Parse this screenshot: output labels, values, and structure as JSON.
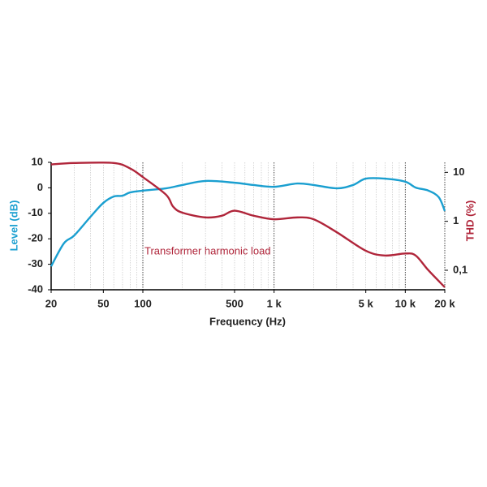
{
  "chart_data": {
    "type": "line",
    "xlabel": "Frequency (Hz)",
    "ylabel": "Level (dB)",
    "y2label": "THD (%)",
    "annotation": "Transformer harmonic load",
    "xscale": "log",
    "y2scale": "log",
    "xlim": [
      20,
      20000
    ],
    "ylim": [
      -40,
      10
    ],
    "y2lim": [
      0.04,
      16
    ],
    "xticks": [
      20,
      50,
      100,
      500,
      {
        "value": 1000,
        "label": "1 k"
      },
      {
        "value": 5000,
        "label": "5 k"
      },
      {
        "value": 10000,
        "label": "10 k"
      },
      {
        "value": 20000,
        "label": "20 k"
      }
    ],
    "x_major_grid": [
      100,
      1000,
      10000,
      20000
    ],
    "x_minor_grid": [
      30,
      40,
      50,
      60,
      70,
      80,
      90,
      200,
      300,
      400,
      500,
      600,
      700,
      800,
      900,
      2000,
      3000,
      4000,
      5000,
      6000,
      7000,
      8000,
      9000
    ],
    "yticks": [
      -40,
      -30,
      -20,
      -10,
      0,
      10
    ],
    "y2ticks": [
      10,
      1,
      {
        "value": 0.1,
        "label": "0,1"
      }
    ],
    "series": [
      {
        "name": "Level",
        "color": "#1a9fd0",
        "x": [
          20,
          25,
          30,
          40,
          50,
          60,
          70,
          80,
          100,
          150,
          200,
          300,
          500,
          700,
          1000,
          1500,
          2000,
          3000,
          4000,
          5000,
          7000,
          10000,
          12000,
          15000,
          18000,
          20000
        ],
        "values": [
          -30.8,
          -21.8,
          -18.7,
          -11.3,
          -5.9,
          -3.4,
          -3.1,
          -1.8,
          -1.1,
          -0.2,
          1.1,
          2.7,
          2.0,
          1.1,
          0.4,
          1.7,
          1.1,
          -0.2,
          1.1,
          3.6,
          3.6,
          2.4,
          0.1,
          -1.1,
          -3.7,
          -9.1
        ]
      },
      {
        "name": "THD",
        "color": "#b0253a",
        "axis": "y2",
        "x": [
          20,
          30,
          60,
          80,
          100,
          150,
          170,
          200,
          300,
          400,
          500,
          700,
          1000,
          1500,
          2000,
          3000,
          5000,
          7000,
          10000,
          12000,
          15000,
          20000
        ],
        "values": [
          14.5,
          15.5,
          15.5,
          12,
          8,
          3.5,
          2,
          1.5,
          1.2,
          1.3,
          1.65,
          1.3,
          1.1,
          1.2,
          1.1,
          0.6,
          0.25,
          0.2,
          0.22,
          0.2,
          0.1,
          0.045
        ]
      }
    ]
  }
}
